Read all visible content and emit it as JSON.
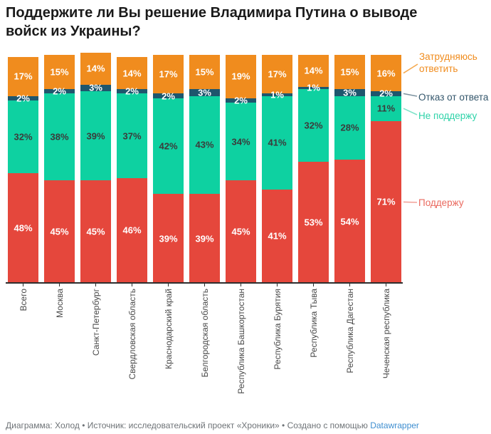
{
  "header": {
    "title": "Поддержите ли Вы решение Владимира Путина о выводе войск из Украины?"
  },
  "legend": {
    "items": [
      {
        "label": "Затрудняюсь ответить",
        "text_color": "#f08c1e",
        "line_color": "#f5a94f",
        "series": "Затрудняюсь ответить"
      },
      {
        "label": "Отказ от ответа",
        "text_color": "#33566b",
        "line_color": "#7d93a0",
        "series": "Отказ от ответа"
      },
      {
        "label": "Не поддержу",
        "text_color": "#2fd3a9",
        "line_color": "#7fe3c9",
        "series": "Не поддержу"
      },
      {
        "label": "Поддержу",
        "text_color": "#ea6a5f",
        "line_color": "#f2a29a",
        "series": "Поддержу"
      }
    ]
  },
  "footer": {
    "prefix": "Диаграмма: Холод • Источник: исследовательский проект «Хроники» • Создано с помощью ",
    "link_label": "Datawrapper",
    "link_color": "#3e8ed0"
  },
  "chart_data": {
    "type": "bar",
    "stacked": true,
    "orientation": "vertical",
    "unit": "%",
    "title": "Поддержите ли Вы решение Владимира Путина о выводе войск из Украины?",
    "categories": [
      "Всего",
      "Москва",
      "Санкт-Петербург",
      "Свердловская область",
      "Краснодарский край",
      "Белгородская область",
      "Республика Башкортостан",
      "Республика Бурятия",
      "Республика Тыва",
      "Республика Дагестан",
      "Чеченская республика"
    ],
    "series": [
      {
        "name": "Поддержу",
        "color": "#e5473c",
        "label_color": "#ffffff",
        "values": [
          48,
          45,
          45,
          46,
          39,
          39,
          45,
          41,
          53,
          54,
          71
        ]
      },
      {
        "name": "Не поддержу",
        "color": "#0ed1a1",
        "label_color": "#3b3b3b",
        "values": [
          32,
          38,
          39,
          37,
          42,
          43,
          34,
          41,
          32,
          28,
          11
        ]
      },
      {
        "name": "Отказ от ответа",
        "color": "#1e566d",
        "label_color": "#ffffff",
        "values": [
          2,
          2,
          3,
          2,
          2,
          3,
          2,
          1,
          1,
          3,
          2
        ]
      },
      {
        "name": "Затрудняюсь ответить",
        "color": "#f08c1e",
        "label_color": "#ffffff",
        "values": [
          17,
          15,
          14,
          14,
          17,
          15,
          19,
          17,
          14,
          15,
          16
        ]
      }
    ],
    "value_labels": "inside",
    "ylim": [
      0,
      101
    ],
    "grid": false,
    "legend_position": "right"
  }
}
